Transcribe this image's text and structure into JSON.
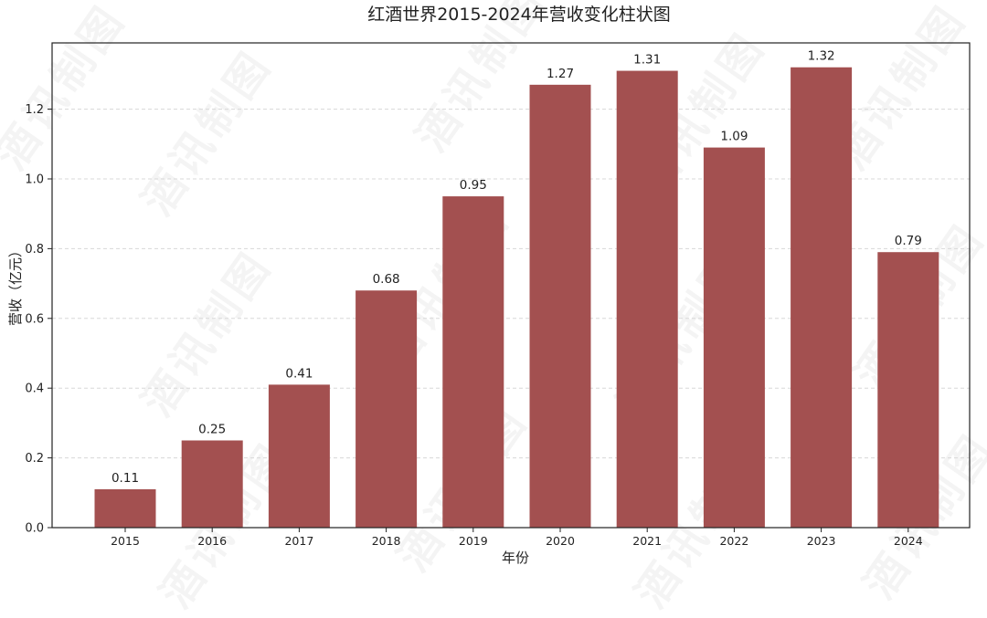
{
  "watermark": "酒讯制图",
  "colors": {
    "bar": "#a35050",
    "axis": "#222222",
    "grid": "#d8d8d8",
    "text": "#222222"
  },
  "chart_data": {
    "type": "bar",
    "title": "红酒世界2015-2024年营收变化柱状图",
    "xlabel": "年份",
    "ylabel": "营收（亿元）",
    "categories": [
      "2015",
      "2016",
      "2017",
      "2018",
      "2019",
      "2020",
      "2021",
      "2022",
      "2023",
      "2024"
    ],
    "values": [
      0.11,
      0.25,
      0.41,
      0.68,
      0.95,
      1.27,
      1.31,
      1.09,
      1.32,
      0.79
    ],
    "value_labels": [
      "0.11",
      "0.25",
      "0.41",
      "0.68",
      "0.95",
      "1.27",
      "1.31",
      "1.09",
      "1.32",
      "0.79"
    ],
    "yticks": [
      "0.0",
      "0.2",
      "0.4",
      "0.6",
      "0.8",
      "1.0",
      "1.2"
    ],
    "ylim": [
      0,
      1.39
    ],
    "grid": "horizontal dashed"
  }
}
